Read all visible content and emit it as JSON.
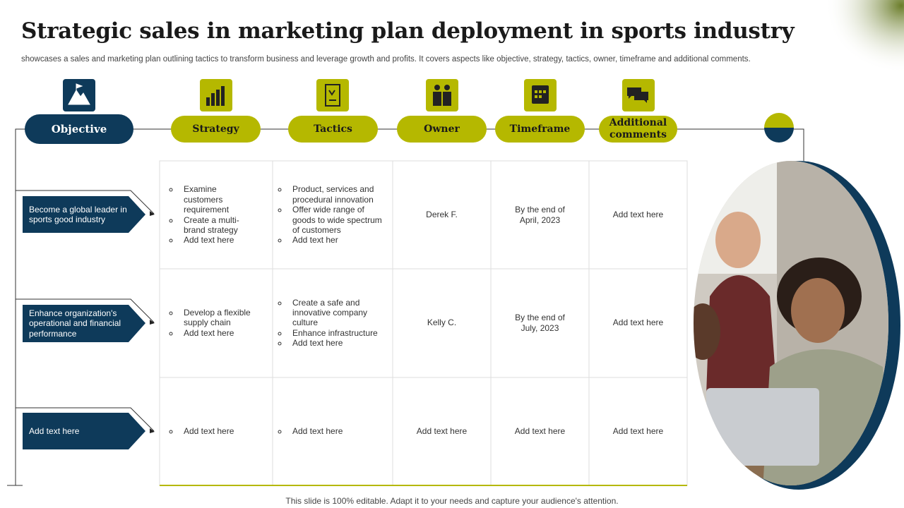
{
  "title": "Strategic sales in marketing plan deployment in sports industry",
  "subtitle": "showcases a sales and marketing plan outlining tactics to transform business and leverage growth and profits. It covers aspects like objective, strategy, tactics, owner, timeframe and additional comments.",
  "headers": [
    "Objective",
    "Strategy",
    "Tactics",
    "Owner",
    "Timeframe",
    "Additional comments"
  ],
  "rows": [
    {
      "objective": "Become a global leader in sports good industry",
      "strategy": [
        "Examine customers requirement",
        "Create a multi-brand strategy",
        "Add text here"
      ],
      "tactics": [
        "Product, services and procedural innovation",
        "Offer wide range of goods to wide spectrum of customers",
        "Add text her"
      ],
      "owner": "Derek F.",
      "timeframe": "By the end of April, 2023",
      "comments": "Add text here"
    },
    {
      "objective": "Enhance organization's operational and financial performance",
      "strategy": [
        "Develop a flexible supply chain",
        "Add text here"
      ],
      "tactics": [
        "Create a safe and innovative company culture",
        "Enhance infrastructure",
        "Add text here"
      ],
      "owner": "Kelly C.",
      "timeframe": "By the end of July, 2023",
      "comments": "Add text here"
    },
    {
      "objective": "Add text here",
      "strategy": [
        "Add text here"
      ],
      "tactics": [
        "Add text here"
      ],
      "owner": "Add text here",
      "timeframe": "Add text here",
      "comments": "Add text here"
    }
  ],
  "footer": "This slide is 100% editable. Adapt it to your needs and capture your audience's attention."
}
